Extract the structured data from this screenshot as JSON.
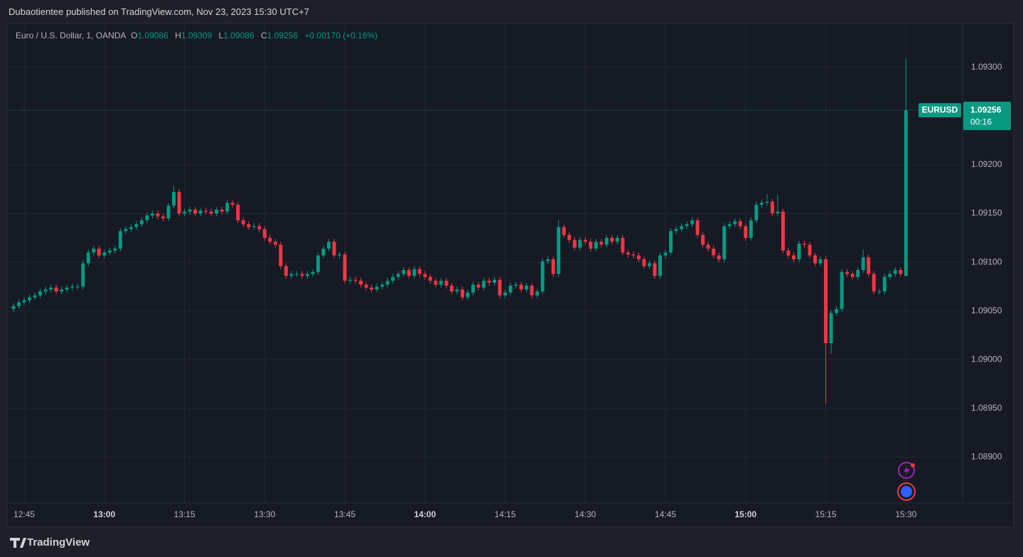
{
  "header": {
    "title": "Dubaotientee published on TradingView.com, Nov 23, 2023 15:30 UTC+7"
  },
  "footer": {
    "brand": "TradingView"
  },
  "chart_data": {
    "type": "candlestick",
    "title": "Euro / U.S. Dollar, 1, OANDA",
    "ohlc_labels": [
      "O",
      "H",
      "L",
      "C"
    ],
    "change": "+0.00170 (+0.16%)",
    "symbol": "EURUSD",
    "countdown": "00:16",
    "up_color": "#089981",
    "down_color": "#f23645",
    "grid": true,
    "ylim": [
      1.08853,
      1.09345
    ],
    "yticks": [
      {
        "value": 1.089,
        "label": "1.08900"
      },
      {
        "value": 1.0895,
        "label": "1.08950"
      },
      {
        "value": 1.09,
        "label": "1.09000"
      },
      {
        "value": 1.0905,
        "label": "1.09050"
      },
      {
        "value": 1.091,
        "label": "1.09100"
      },
      {
        "value": 1.0915,
        "label": "1.09150"
      },
      {
        "value": 1.092,
        "label": "1.09200"
      },
      {
        "value": 1.093,
        "label": "1.09300"
      }
    ],
    "xticks": [
      "12:45",
      "13:00",
      "13:15",
      "13:30",
      "13:45",
      "14:00",
      "14:15",
      "14:30",
      "14:45",
      "15:00",
      "15:15",
      "15:30"
    ],
    "x": [
      "12:43",
      "12:44",
      "12:45",
      "12:46",
      "12:47",
      "12:48",
      "12:49",
      "12:50",
      "12:51",
      "12:52",
      "12:53",
      "12:54",
      "12:55",
      "12:56",
      "12:57",
      "12:58",
      "12:59",
      "13:00",
      "13:01",
      "13:02",
      "13:03",
      "13:04",
      "13:05",
      "13:06",
      "13:07",
      "13:08",
      "13:09",
      "13:10",
      "13:11",
      "13:12",
      "13:13",
      "13:14",
      "13:15",
      "13:16",
      "13:17",
      "13:18",
      "13:19",
      "13:20",
      "13:21",
      "13:22",
      "13:23",
      "13:24",
      "13:25",
      "13:26",
      "13:27",
      "13:28",
      "13:29",
      "13:30",
      "13:31",
      "13:32",
      "13:33",
      "13:34",
      "13:35",
      "13:36",
      "13:37",
      "13:38",
      "13:39",
      "13:40",
      "13:41",
      "13:42",
      "13:43",
      "13:44",
      "13:45",
      "13:46",
      "13:47",
      "13:48",
      "13:49",
      "13:50",
      "13:51",
      "13:52",
      "13:53",
      "13:54",
      "13:55",
      "13:56",
      "13:57",
      "13:58",
      "13:59",
      "14:00",
      "14:01",
      "14:02",
      "14:03",
      "14:04",
      "14:05",
      "14:06",
      "14:07",
      "14:08",
      "14:09",
      "14:10",
      "14:11",
      "14:12",
      "14:13",
      "14:14",
      "14:15",
      "14:16",
      "14:17",
      "14:18",
      "14:19",
      "14:20",
      "14:21",
      "14:22",
      "14:23",
      "14:24",
      "14:25",
      "14:26",
      "14:27",
      "14:28",
      "14:29",
      "14:30",
      "14:31",
      "14:32",
      "14:33",
      "14:34",
      "14:35",
      "14:36",
      "14:37",
      "14:38",
      "14:39",
      "14:40",
      "14:41",
      "14:42",
      "14:43",
      "14:44",
      "14:45",
      "14:46",
      "14:47",
      "14:48",
      "14:49",
      "14:50",
      "14:51",
      "14:52",
      "14:53",
      "14:54",
      "14:55",
      "14:56",
      "14:57",
      "14:58",
      "14:59",
      "15:00",
      "15:01",
      "15:02",
      "15:03",
      "15:04",
      "15:05",
      "15:06",
      "15:07",
      "15:08",
      "15:09",
      "15:10",
      "15:11",
      "15:12",
      "15:13",
      "15:14",
      "15:15",
      "15:16",
      "15:17",
      "15:18",
      "15:19",
      "15:20",
      "15:21",
      "15:22",
      "15:23",
      "15:24",
      "15:25",
      "15:26",
      "15:27",
      "15:28",
      "15:29",
      "15:30"
    ],
    "open": [
      1.09052,
      1.09055,
      1.09059,
      1.09061,
      1.09064,
      1.09066,
      1.0907,
      1.09072,
      1.09074,
      1.0907,
      1.09072,
      1.09074,
      1.09075,
      1.09075,
      1.09099,
      1.0911,
      1.09114,
      1.09107,
      1.0911,
      1.09112,
      1.09114,
      1.09132,
      1.09134,
      1.09136,
      1.09139,
      1.09143,
      1.09148,
      1.0915,
      1.09147,
      1.09145,
      1.09158,
      1.09172,
      1.0915,
      1.09152,
      1.09154,
      1.0915,
      1.09153,
      1.09152,
      1.0915,
      1.09154,
      1.09152,
      1.09161,
      1.09159,
      1.09143,
      1.09139,
      1.09136,
      1.09137,
      1.09134,
      1.09125,
      1.09121,
      1.09118,
      1.09096,
      1.09086,
      1.09088,
      1.09088,
      1.09086,
      1.09088,
      1.0909,
      1.09107,
      1.09114,
      1.09121,
      1.09107,
      1.09108,
      1.09081,
      1.09082,
      1.09081,
      1.09077,
      1.09074,
      1.09072,
      1.09075,
      1.09077,
      1.09081,
      1.09085,
      1.09088,
      1.09092,
      1.09086,
      1.09093,
      1.09088,
      1.09085,
      1.09081,
      1.09077,
      1.09081,
      1.09076,
      1.0907,
      1.09072,
      1.09064,
      1.09069,
      1.09077,
      1.09074,
      1.09081,
      1.09079,
      1.09082,
      1.09066,
      1.09069,
      1.09076,
      1.09077,
      1.09072,
      1.09076,
      1.09066,
      1.0907,
      1.09101,
      1.09103,
      1.09088,
      1.09136,
      1.09128,
      1.09123,
      1.09115,
      1.09123,
      1.09121,
      1.09114,
      1.09121,
      1.09118,
      1.09125,
      1.09121,
      1.09125,
      1.0911,
      1.09108,
      1.09107,
      1.09103,
      1.09096,
      1.09099,
      1.09086,
      1.09107,
      1.0911,
      1.09132,
      1.09134,
      1.09137,
      1.09139,
      1.09143,
      1.09128,
      1.09118,
      1.09114,
      1.09107,
      1.09103,
      1.09137,
      1.09139,
      1.09142,
      1.09137,
      1.09125,
      1.09143,
      1.09159,
      1.09161,
      1.09162,
      1.0915,
      1.09152,
      1.09112,
      1.09107,
      1.09103,
      1.09119,
      1.09118,
      1.09107,
      1.09099,
      1.09103,
      1.09017,
      1.09048,
      1.09052,
      1.0909,
      1.09088,
      1.09085,
      1.09092,
      1.09105,
      1.09088,
      1.0907,
      1.0907,
      1.09085,
      1.09088,
      1.09092,
      1.09086
    ],
    "high": [
      1.09058,
      1.09062,
      1.09064,
      1.09067,
      1.09069,
      1.09073,
      1.09075,
      1.09077,
      1.09077,
      1.09075,
      1.09077,
      1.09078,
      1.09078,
      1.09102,
      1.09113,
      1.09117,
      1.09117,
      1.09113,
      1.09115,
      1.09117,
      1.09135,
      1.09137,
      1.09139,
      1.09142,
      1.09146,
      1.09151,
      1.09153,
      1.09153,
      1.0915,
      1.09161,
      1.09178,
      1.09175,
      1.09155,
      1.09157,
      1.09157,
      1.09156,
      1.09156,
      1.09155,
      1.09157,
      1.09157,
      1.09164,
      1.09164,
      1.09162,
      1.09146,
      1.09142,
      1.0914,
      1.0914,
      1.09137,
      1.09128,
      1.09124,
      1.09121,
      1.09099,
      1.09091,
      1.09091,
      1.09091,
      1.09091,
      1.09093,
      1.0911,
      1.09117,
      1.09124,
      1.09124,
      1.09111,
      1.09111,
      1.09085,
      1.09085,
      1.09084,
      1.0908,
      1.09077,
      1.09078,
      1.0908,
      1.09084,
      1.09088,
      1.09091,
      1.09095,
      1.09095,
      1.09096,
      1.09096,
      1.09091,
      1.09088,
      1.09084,
      1.09084,
      1.09084,
      1.09079,
      1.09075,
      1.09075,
      1.09072,
      1.0908,
      1.0908,
      1.09084,
      1.09084,
      1.09085,
      1.09085,
      1.09072,
      1.09079,
      1.0908,
      1.0908,
      1.09079,
      1.09079,
      1.09073,
      1.09104,
      1.09106,
      1.09106,
      1.09143,
      1.09139,
      1.09131,
      1.09126,
      1.09126,
      1.09126,
      1.09124,
      1.09124,
      1.09124,
      1.09128,
      1.09128,
      1.09128,
      1.09128,
      1.09113,
      1.09111,
      1.0911,
      1.09106,
      1.09102,
      1.09102,
      1.0911,
      1.09113,
      1.09135,
      1.09137,
      1.0914,
      1.09142,
      1.09146,
      1.09146,
      1.09131,
      1.09121,
      1.09117,
      1.0911,
      1.0914,
      1.09142,
      1.09145,
      1.09145,
      1.0914,
      1.09146,
      1.09162,
      1.09164,
      1.0917,
      1.09165,
      1.0917,
      1.09155,
      1.09115,
      1.0911,
      1.09122,
      1.09122,
      1.09121,
      1.0911,
      1.09106,
      1.09106,
      1.09051,
      1.09055,
      1.09093,
      1.09093,
      1.09091,
      1.09095,
      1.09113,
      1.09108,
      1.09091,
      1.09073,
      1.09088,
      1.09091,
      1.09095,
      1.09095,
      1.09309
    ],
    "low": [
      1.09049,
      1.09052,
      1.09056,
      1.09058,
      1.09061,
      1.09063,
      1.09067,
      1.09069,
      1.09067,
      1.09067,
      1.09069,
      1.09071,
      1.09072,
      1.09072,
      1.09096,
      1.09107,
      1.09104,
      1.09104,
      1.09107,
      1.09109,
      1.09111,
      1.09129,
      1.09131,
      1.09133,
      1.09136,
      1.0914,
      1.09145,
      1.09144,
      1.09142,
      1.09142,
      1.09155,
      1.09147,
      1.09147,
      1.09149,
      1.09147,
      1.09147,
      1.09149,
      1.09147,
      1.09147,
      1.09149,
      1.09149,
      1.09156,
      1.0914,
      1.09136,
      1.09133,
      1.09133,
      1.09131,
      1.09122,
      1.09118,
      1.09115,
      1.09093,
      1.09083,
      1.09083,
      1.09085,
      1.09083,
      1.09083,
      1.09085,
      1.09087,
      1.09104,
      1.09111,
      1.09104,
      1.09104,
      1.09078,
      1.09078,
      1.09078,
      1.09074,
      1.09071,
      1.09069,
      1.09069,
      1.09072,
      1.09074,
      1.09078,
      1.09082,
      1.09085,
      1.09083,
      1.09083,
      1.09085,
      1.09082,
      1.09078,
      1.09074,
      1.09074,
      1.09073,
      1.09067,
      1.09067,
      1.09061,
      1.09061,
      1.09066,
      1.09071,
      1.09071,
      1.09076,
      1.09076,
      1.09063,
      1.09063,
      1.09066,
      1.09073,
      1.09069,
      1.09069,
      1.09063,
      1.09063,
      1.09067,
      1.09098,
      1.09085,
      1.09085,
      1.09125,
      1.0912,
      1.09112,
      1.09112,
      1.09118,
      1.09111,
      1.09111,
      1.09115,
      1.09115,
      1.09118,
      1.09118,
      1.09107,
      1.09105,
      1.09104,
      1.091,
      1.09093,
      1.09093,
      1.09083,
      1.09083,
      1.09104,
      1.09107,
      1.09129,
      1.09131,
      1.09134,
      1.09136,
      1.09125,
      1.09115,
      1.09111,
      1.09104,
      1.091,
      1.091,
      1.09134,
      1.09136,
      1.09134,
      1.09122,
      1.09122,
      1.0914,
      1.09156,
      1.09158,
      1.09147,
      1.09147,
      1.09109,
      1.09104,
      1.091,
      1.091,
      1.09115,
      1.09104,
      1.09096,
      1.09096,
      1.08955,
      1.09006,
      1.09045,
      1.09049,
      1.09085,
      1.09082,
      1.09082,
      1.09089,
      1.09085,
      1.09067,
      1.09067,
      1.09067,
      1.09082,
      1.09085,
      1.09085,
      1.09086
    ],
    "close": [
      1.09055,
      1.09059,
      1.09061,
      1.09064,
      1.09066,
      1.0907,
      1.09072,
      1.09074,
      1.0907,
      1.09072,
      1.09074,
      1.09075,
      1.09075,
      1.09099,
      1.0911,
      1.09114,
      1.09107,
      1.0911,
      1.09112,
      1.09114,
      1.09132,
      1.09134,
      1.09136,
      1.09139,
      1.09143,
      1.09148,
      1.0915,
      1.09147,
      1.09145,
      1.09158,
      1.09172,
      1.0915,
      1.09152,
      1.09154,
      1.0915,
      1.09153,
      1.09152,
      1.0915,
      1.09154,
      1.09152,
      1.09161,
      1.09159,
      1.09143,
      1.09139,
      1.09136,
      1.09137,
      1.09134,
      1.09125,
      1.09121,
      1.09118,
      1.09096,
      1.09086,
      1.09088,
      1.09088,
      1.09086,
      1.09088,
      1.0909,
      1.09107,
      1.09114,
      1.09121,
      1.09107,
      1.09108,
      1.09081,
      1.09082,
      1.09081,
      1.09077,
      1.09074,
      1.09072,
      1.09075,
      1.09077,
      1.09081,
      1.09085,
      1.09088,
      1.09092,
      1.09086,
      1.09093,
      1.09088,
      1.09085,
      1.09081,
      1.09077,
      1.09081,
      1.09076,
      1.0907,
      1.09072,
      1.09064,
      1.09069,
      1.09077,
      1.09074,
      1.09081,
      1.09079,
      1.09082,
      1.09066,
      1.09069,
      1.09076,
      1.09077,
      1.09072,
      1.09076,
      1.09066,
      1.0907,
      1.09101,
      1.09103,
      1.09088,
      1.09136,
      1.09128,
      1.09123,
      1.09115,
      1.09123,
      1.09121,
      1.09114,
      1.09121,
      1.09118,
      1.09125,
      1.09121,
      1.09125,
      1.0911,
      1.09108,
      1.09107,
      1.09103,
      1.09096,
      1.09099,
      1.09086,
      1.09107,
      1.0911,
      1.09132,
      1.09134,
      1.09137,
      1.09139,
      1.09143,
      1.09128,
      1.09118,
      1.09114,
      1.09107,
      1.09103,
      1.09137,
      1.09139,
      1.09142,
      1.09137,
      1.09125,
      1.09143,
      1.09159,
      1.09161,
      1.09162,
      1.0915,
      1.09152,
      1.09112,
      1.09107,
      1.09103,
      1.09119,
      1.09118,
      1.09107,
      1.09099,
      1.09103,
      1.09017,
      1.09048,
      1.09052,
      1.0909,
      1.09088,
      1.09085,
      1.09092,
      1.09105,
      1.09088,
      1.0907,
      1.0907,
      1.09085,
      1.09088,
      1.09092,
      1.09088,
      1.09256
    ]
  }
}
